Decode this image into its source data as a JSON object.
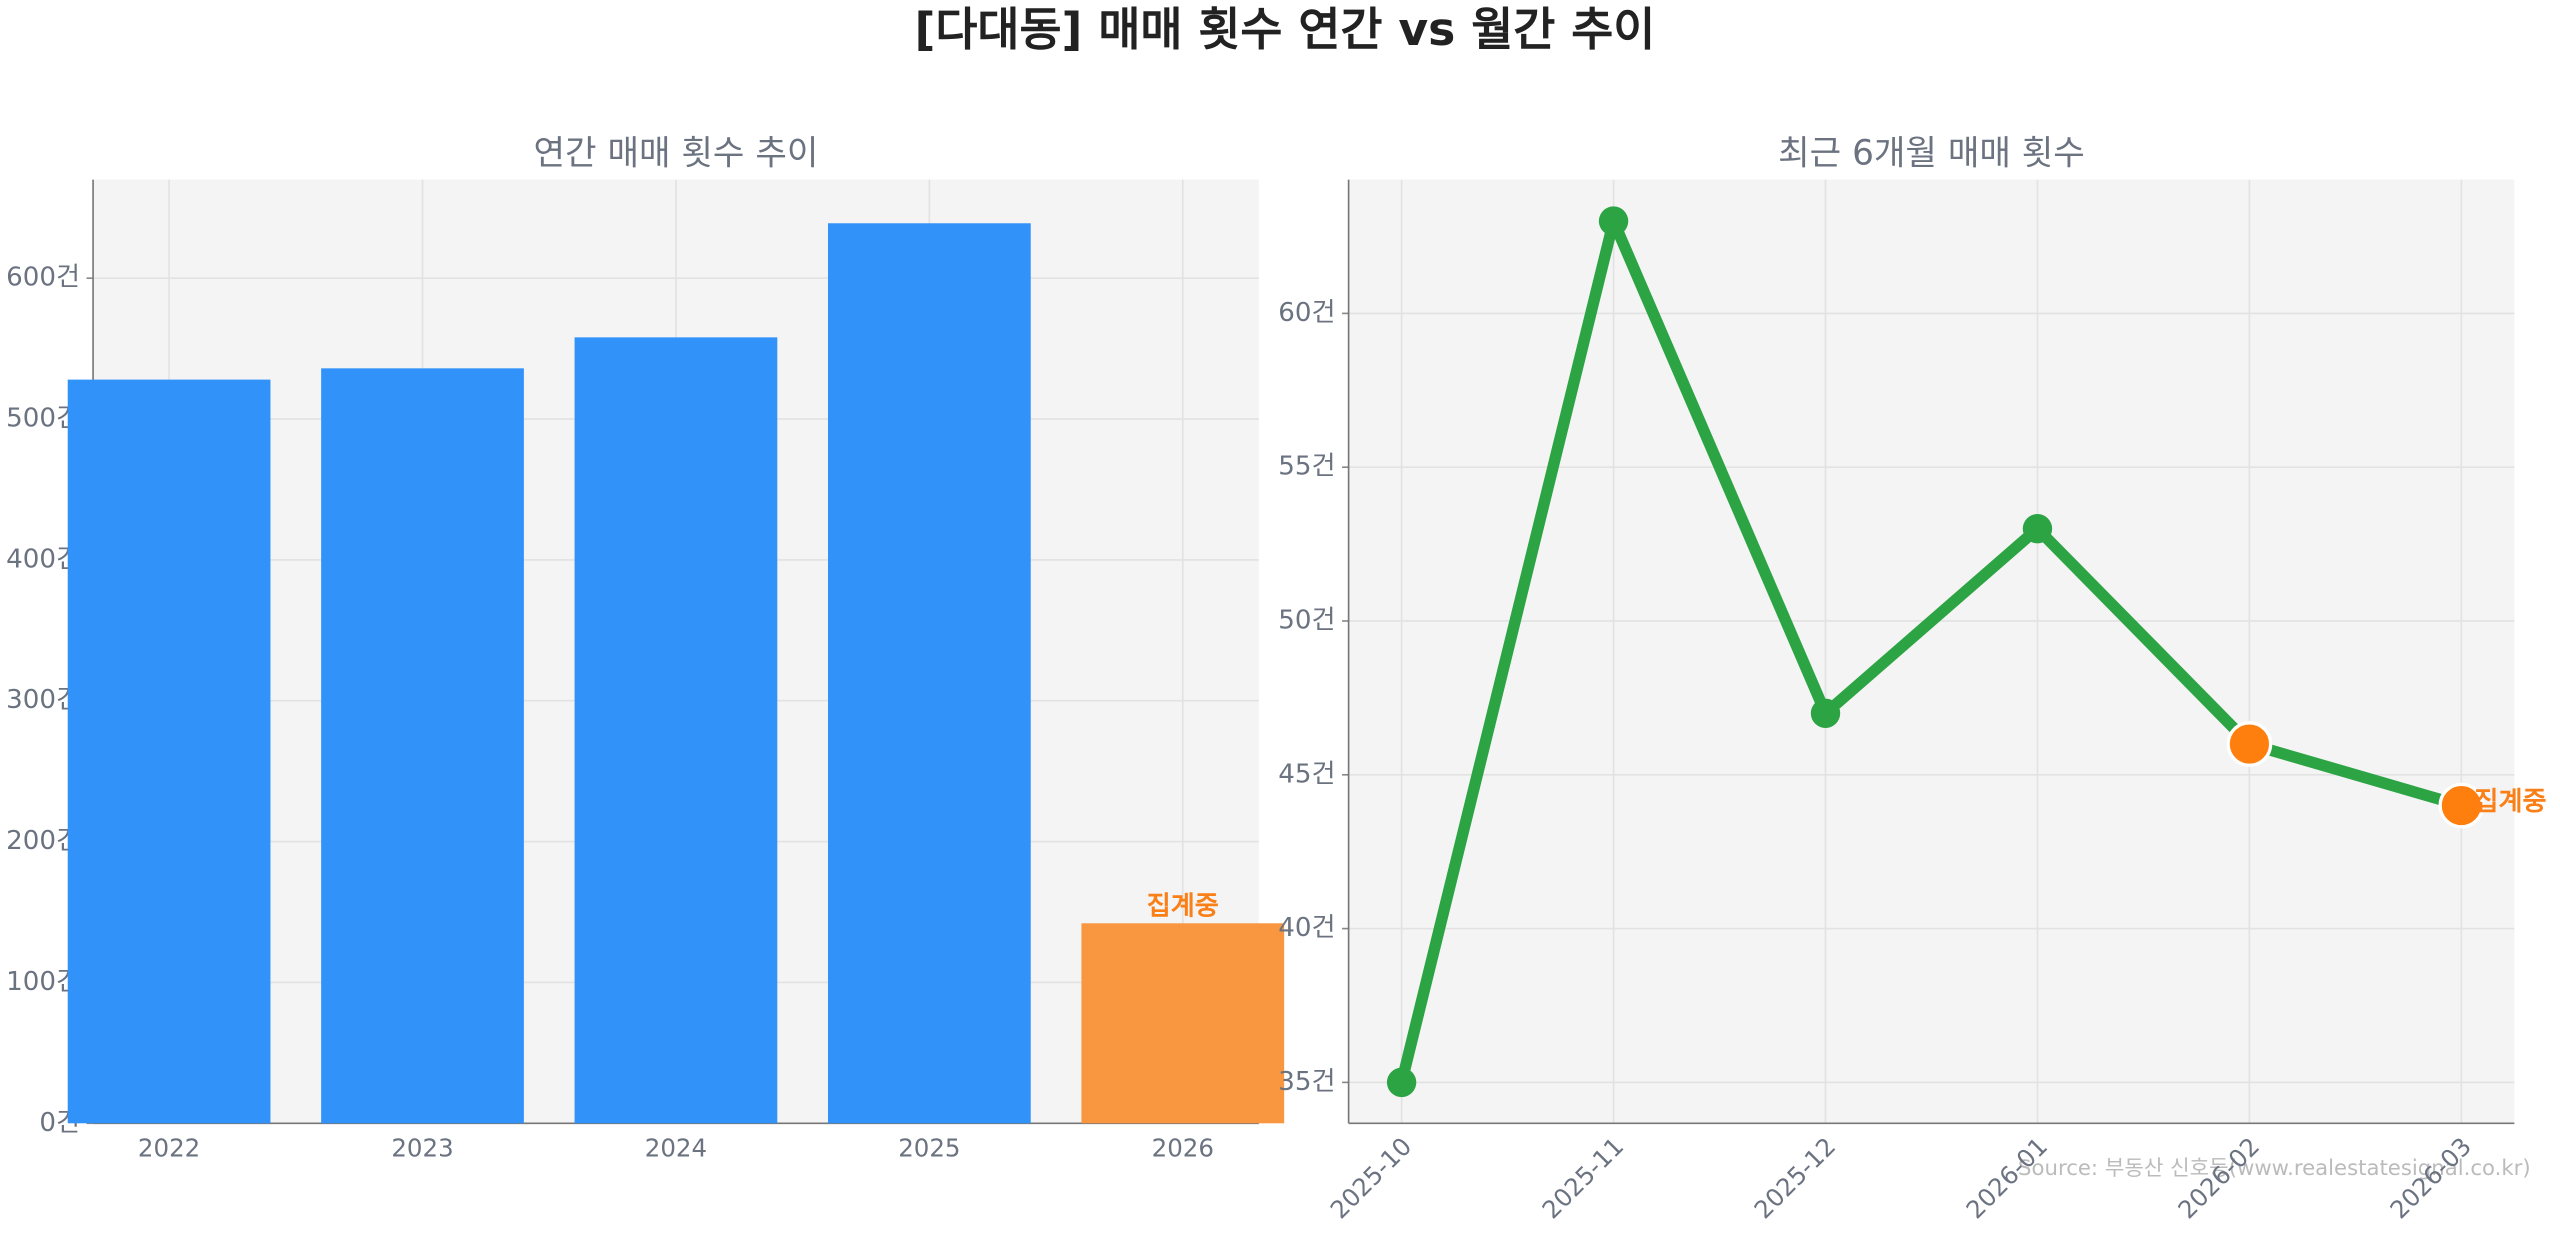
{
  "title": "[다대동] 매매 횟수 연간 vs 월간 추이",
  "source": "Source: 부동산 신호등(www.realestatesignal.co.kr)",
  "chart_data": [
    {
      "type": "bar",
      "title": "연간 매매 횟수 추이",
      "categories": [
        "2022",
        "2023",
        "2024",
        "2025",
        "2026"
      ],
      "values": [
        528,
        536,
        558,
        639,
        142
      ],
      "colors": [
        "#3192fa",
        "#3192fa",
        "#3192fa",
        "#3192fa",
        "#f99640"
      ],
      "annotation": "집계중",
      "annotation_color": "#fa7f16",
      "ylim": [
        0,
        670
      ],
      "yticks": [
        {
          "value": 0,
          "label": "0건"
        },
        {
          "value": 100,
          "label": "100건"
        },
        {
          "value": 200,
          "label": "200건"
        },
        {
          "value": 300,
          "label": "300건"
        },
        {
          "value": 400,
          "label": "400건"
        },
        {
          "value": 500,
          "label": "500건"
        },
        {
          "value": 600,
          "label": "600건"
        }
      ],
      "grid": true
    },
    {
      "type": "line",
      "title": "최근 6개월 매매 횟수",
      "categories": [
        "2025-10",
        "2025-11",
        "2025-12",
        "2026-01",
        "2026-02",
        "2026-03"
      ],
      "values": [
        35,
        63,
        47,
        53,
        46,
        44
      ],
      "color": "#2ca444",
      "marker_colors": [
        "#2ca444",
        "#2ca444",
        "#2ca444",
        "#2ca444",
        "#ff7f0e",
        "#ff7f0e"
      ],
      "annotation": "집계중",
      "annotation_color": "#fa7f16",
      "ylim": [
        33.67,
        64.35
      ],
      "yticks": [
        {
          "value": 35,
          "label": "35건"
        },
        {
          "value": 40,
          "label": "40건"
        },
        {
          "value": 45,
          "label": "45건"
        },
        {
          "value": 50,
          "label": "50건"
        },
        {
          "value": 55,
          "label": "55건"
        },
        {
          "value": 60,
          "label": "60건"
        }
      ],
      "grid": true
    }
  ]
}
